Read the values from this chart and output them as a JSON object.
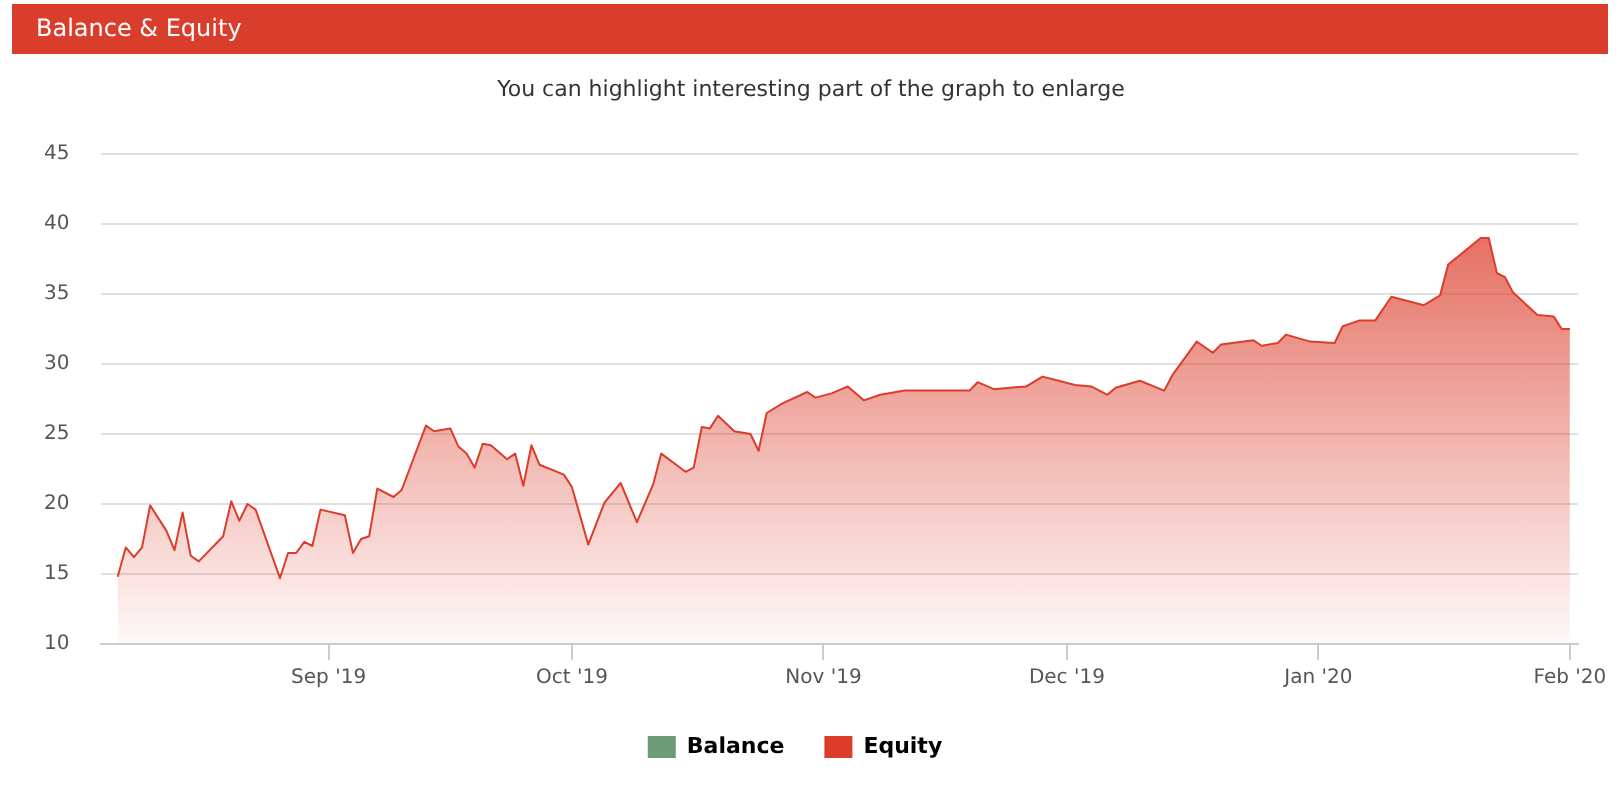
{
  "chart_data": {
    "type": "area",
    "title": "Balance & Equity",
    "subtitle": "You can highlight interesting part of the graph to enlarge",
    "x": [
      "2019-08-06",
      "2019-08-07",
      "2019-08-08",
      "2019-08-09",
      "2019-08-10",
      "2019-08-12",
      "2019-08-13",
      "2019-08-14",
      "2019-08-15",
      "2019-08-16",
      "2019-08-19",
      "2019-08-20",
      "2019-08-21",
      "2019-08-22",
      "2019-08-23",
      "2019-08-26",
      "2019-08-27",
      "2019-08-28",
      "2019-08-29",
      "2019-08-30",
      "2019-08-31",
      "2019-09-03",
      "2019-09-04",
      "2019-09-05",
      "2019-09-06",
      "2019-09-07",
      "2019-09-09",
      "2019-09-10",
      "2019-09-13",
      "2019-09-14",
      "2019-09-16",
      "2019-09-17",
      "2019-09-18",
      "2019-09-19",
      "2019-09-20",
      "2019-09-21",
      "2019-09-23",
      "2019-09-24",
      "2019-09-25",
      "2019-09-26",
      "2019-09-27",
      "2019-09-30",
      "2019-10-01",
      "2019-10-03",
      "2019-10-05",
      "2019-10-07",
      "2019-10-09",
      "2019-10-11",
      "2019-10-12",
      "2019-10-15",
      "2019-10-16",
      "2019-10-17",
      "2019-10-18",
      "2019-10-19",
      "2019-10-21",
      "2019-10-23",
      "2019-10-24",
      "2019-10-25",
      "2019-10-27",
      "2019-10-30",
      "2019-10-31",
      "2019-11-02",
      "2019-11-04",
      "2019-11-06",
      "2019-11-08",
      "2019-11-11",
      "2019-11-15",
      "2019-11-19",
      "2019-11-20",
      "2019-11-22",
      "2019-11-26",
      "2019-11-28",
      "2019-11-30",
      "2019-12-02",
      "2019-12-04",
      "2019-12-06",
      "2019-12-07",
      "2019-12-10",
      "2019-12-13",
      "2019-12-14",
      "2019-12-17",
      "2019-12-19",
      "2019-12-20",
      "2019-12-24",
      "2019-12-25",
      "2019-12-27",
      "2019-12-28",
      "2019-12-31",
      "2020-01-03",
      "2020-01-04",
      "2020-01-06",
      "2020-01-08",
      "2020-01-10",
      "2020-01-14",
      "2020-01-16",
      "2020-01-17",
      "2020-01-21",
      "2020-01-22",
      "2020-01-23",
      "2020-01-24",
      "2020-01-25",
      "2020-01-28",
      "2020-01-30",
      "2020-01-31",
      "2020-02-01"
    ],
    "series": [
      {
        "name": "Balance",
        "color": "#6e9a78",
        "values": [
          null,
          null,
          null,
          null,
          null,
          null,
          null,
          null,
          null,
          null,
          null,
          null,
          null,
          null,
          null,
          null,
          null,
          null,
          null,
          null,
          null,
          null,
          null,
          null,
          null,
          null,
          null,
          null,
          null,
          null,
          null,
          null,
          null,
          null,
          null,
          null,
          null,
          null,
          null,
          null,
          null,
          null,
          null,
          null,
          null,
          null,
          null,
          null,
          null,
          null,
          null,
          null,
          null,
          null,
          null,
          null,
          null,
          null,
          null,
          null,
          null,
          null,
          null,
          null,
          null,
          null,
          null,
          null,
          null,
          null,
          null,
          null,
          null,
          null,
          null,
          null,
          null,
          null,
          null,
          null,
          null,
          null,
          null,
          null,
          null,
          null,
          null,
          null,
          null,
          null,
          null,
          null,
          null,
          null,
          null,
          null,
          null,
          null,
          null,
          null,
          null,
          null,
          null,
          null,
          null
        ]
      },
      {
        "name": "Equity",
        "color": "#dc3d2b",
        "values": [
          14.8,
          16.9,
          16.2,
          16.9,
          19.9,
          18.1,
          16.7,
          19.4,
          16.3,
          15.9,
          17.7,
          20.2,
          18.8,
          20.0,
          19.6,
          14.7,
          16.5,
          16.5,
          17.3,
          17.0,
          19.6,
          19.2,
          16.5,
          17.5,
          17.7,
          21.1,
          20.5,
          21.0,
          25.6,
          25.2,
          25.4,
          24.1,
          23.6,
          22.6,
          24.3,
          24.2,
          23.2,
          23.6,
          21.3,
          24.2,
          22.8,
          22.1,
          21.2,
          17.1,
          20.1,
          21.5,
          18.7,
          21.4,
          23.6,
          22.3,
          22.6,
          25.5,
          25.4,
          26.3,
          25.2,
          25.0,
          23.8,
          26.5,
          27.2,
          28.0,
          27.6,
          27.9,
          28.4,
          27.4,
          27.8,
          28.1,
          28.1,
          28.1,
          28.7,
          28.2,
          28.4,
          29.1,
          28.8,
          28.5,
          28.4,
          27.8,
          28.3,
          28.8,
          28.1,
          29.2,
          31.6,
          30.8,
          31.4,
          31.7,
          31.3,
          31.5,
          32.1,
          31.6,
          31.5,
          32.7,
          33.1,
          33.1,
          34.8,
          34.2,
          34.9,
          37.1,
          39.0,
          39.0,
          36.5,
          36.2,
          35.1,
          33.5,
          33.4,
          32.5,
          32.5
        ]
      }
    ],
    "xlim": [
      "2019-08-04",
      "2020-02-02"
    ],
    "xticks": [
      {
        "value": "2019-09-01",
        "label": "Sep '19"
      },
      {
        "value": "2019-10-01",
        "label": "Oct '19"
      },
      {
        "value": "2019-11-01",
        "label": "Nov '19"
      },
      {
        "value": "2019-12-01",
        "label": "Dec '19"
      },
      {
        "value": "2020-01-01",
        "label": "Jan '20"
      },
      {
        "value": "2020-02-01",
        "label": "Feb '20"
      }
    ],
    "ylim": [
      10,
      45
    ],
    "yticks": [
      10,
      15,
      20,
      25,
      30,
      35,
      40,
      45
    ],
    "grid": "y",
    "legend": "bottom",
    "marker": "none",
    "line_style": "solid"
  }
}
